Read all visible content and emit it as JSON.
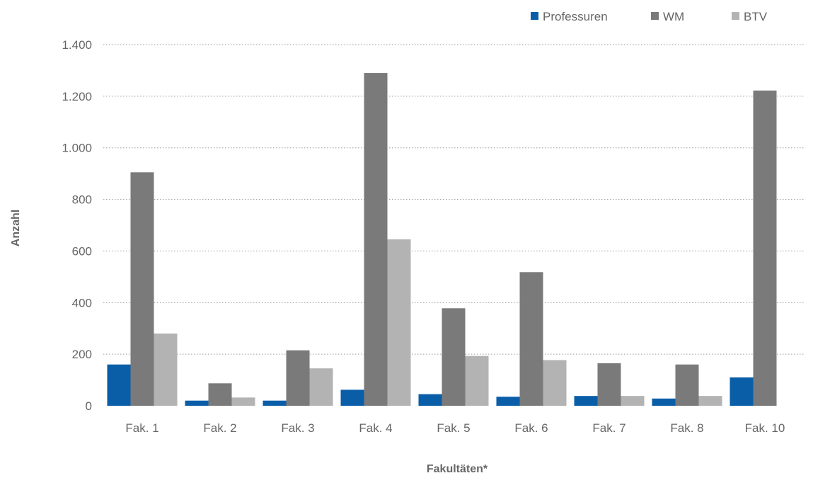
{
  "chart_data": {
    "type": "bar",
    "title": "",
    "xlabel": "Fakultäten*",
    "ylabel": "Anzahl",
    "categories": [
      "Fak. 1",
      "Fak. 2",
      "Fak. 3",
      "Fak. 4",
      "Fak. 5",
      "Fak. 6",
      "Fak. 7",
      "Fak. 8",
      "Fak. 10"
    ],
    "series": [
      {
        "name": "Professuren",
        "color": "#0a5ea8",
        "values": [
          160,
          20,
          20,
          62,
          45,
          35,
          38,
          28,
          110
        ]
      },
      {
        "name": "WM",
        "color": "#7a7a7a",
        "values": [
          905,
          87,
          215,
          1290,
          378,
          518,
          165,
          160,
          1222
        ]
      },
      {
        "name": "BTV",
        "color": "#b3b3b3",
        "values": [
          280,
          32,
          145,
          645,
          193,
          177,
          38,
          38,
          0
        ]
      }
    ],
    "ylim": [
      0,
      1400
    ],
    "yticks": [
      0,
      200,
      400,
      600,
      800,
      1000,
      1200,
      1400
    ],
    "ytick_labels": [
      "0",
      "200",
      "400",
      "600",
      "800",
      "1.000",
      "1.200",
      "1.400"
    ],
    "grid": true,
    "legend_position": "top-right"
  }
}
